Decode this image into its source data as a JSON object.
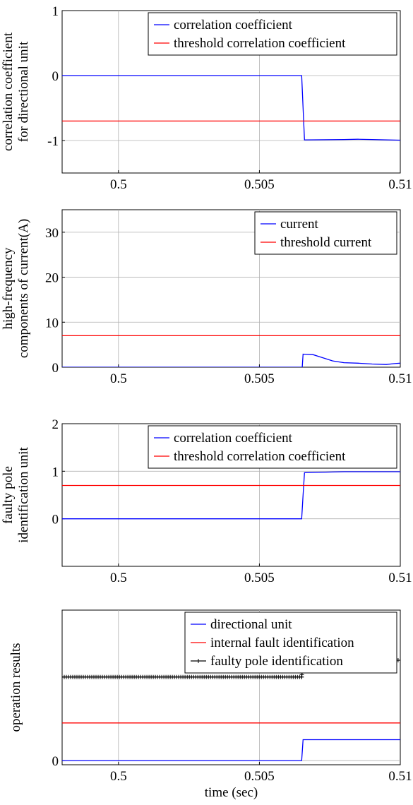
{
  "chart_data": [
    {
      "type": "line",
      "ylabel": [
        "correlation coefficient",
        "for directional unit"
      ],
      "xlim": [
        0.498,
        0.51
      ],
      "ylim": [
        -1.5,
        1
      ],
      "xticks": [
        0.5,
        0.505,
        0.51
      ],
      "xticklabels": [
        "0.5",
        "0.505",
        "0.51"
      ],
      "yticks": [
        -1,
        0,
        1
      ],
      "yticklabels": [
        "-1",
        "0",
        "1"
      ],
      "grid": true,
      "legend_position": "top-right",
      "series": [
        {
          "name": "correlation coefficient",
          "color": "#0000ff",
          "marker": "none",
          "x": [
            0.498,
            0.5065,
            0.50655,
            0.5066,
            0.508,
            0.5085,
            0.509,
            0.51
          ],
          "y": [
            0,
            0,
            -0.5,
            -0.99,
            -0.985,
            -0.98,
            -0.985,
            -0.995
          ]
        },
        {
          "name": "threshold correlation coefficient",
          "color": "#ff0000",
          "marker": "none",
          "x": [
            0.498,
            0.51
          ],
          "y": [
            -0.7,
            -0.7
          ]
        }
      ]
    },
    {
      "type": "line",
      "ylabel": [
        "high-frequency",
        "components of current(A)"
      ],
      "xlim": [
        0.498,
        0.51
      ],
      "ylim": [
        0,
        35
      ],
      "xticks": [
        0.5,
        0.505,
        0.51
      ],
      "xticklabels": [
        "0.5",
        "0.505",
        "0.51"
      ],
      "yticks": [
        0,
        10,
        20,
        30
      ],
      "yticklabels": [
        "0",
        "10",
        "20",
        "30"
      ],
      "grid": true,
      "legend_position": "top-right",
      "series": [
        {
          "name": "current",
          "color": "#0000ff",
          "marker": "none",
          "x": [
            0.498,
            0.50652,
            0.50655,
            0.5069,
            0.5072,
            0.5076,
            0.508,
            0.5085,
            0.509,
            0.5095,
            0.5098,
            0.51
          ],
          "y": [
            0,
            0,
            2.9,
            2.8,
            2.2,
            1.4,
            1.0,
            0.9,
            0.7,
            0.6,
            0.8,
            0.9
          ]
        },
        {
          "name": "threshold current",
          "color": "#ff0000",
          "marker": "none",
          "x": [
            0.498,
            0.51
          ],
          "y": [
            7,
            7
          ]
        }
      ]
    },
    {
      "type": "line",
      "ylabel": [
        "faulty pole",
        "identification unit"
      ],
      "xlim": [
        0.498,
        0.51
      ],
      "ylim": [
        -1,
        2
      ],
      "xticks": [
        0.5,
        0.505,
        0.51
      ],
      "xticklabels": [
        "0.5",
        "0.505",
        "0.51"
      ],
      "yticks": [
        0,
        1,
        2
      ],
      "yticklabels": [
        "0",
        "1",
        "2"
      ],
      "grid": true,
      "legend_position": "top-right",
      "series": [
        {
          "name": "correlation coefficient",
          "color": "#0000ff",
          "marker": "none",
          "x": [
            0.498,
            0.5065,
            0.50655,
            0.5066,
            0.508,
            0.51
          ],
          "y": [
            0,
            0,
            0.5,
            0.97,
            0.99,
            0.99
          ]
        },
        {
          "name": "threshold correlation coefficient",
          "color": "#ff0000",
          "marker": "none",
          "x": [
            0.498,
            0.51
          ],
          "y": [
            0.7,
            0.7
          ]
        }
      ]
    },
    {
      "type": "line",
      "ylabel": [
        "operation results"
      ],
      "xlabel": "time (sec)",
      "xlim": [
        0.498,
        0.51
      ],
      "ylim": [
        -0.1,
        3.6
      ],
      "xticks": [
        0.5,
        0.505,
        0.51
      ],
      "xticklabels": [
        "0.5",
        "0.505",
        "0.51"
      ],
      "yticks": [
        0
      ],
      "yticklabels": [
        "0"
      ],
      "grid": true,
      "legend_position": "top-right",
      "series": [
        {
          "name": "directional unit",
          "color": "#0000ff",
          "marker": "none",
          "x": [
            0.498,
            0.5065,
            0.50655,
            0.51
          ],
          "y": [
            0,
            0,
            0.5,
            0.5
          ]
        },
        {
          "name": "internal fault identification",
          "color": "#ff0000",
          "marker": "none",
          "x": [
            0.498,
            0.51
          ],
          "y": [
            0.9,
            0.9
          ]
        },
        {
          "name": "faulty pole identification",
          "color": "#000000",
          "marker": "plus",
          "x": [
            0.498,
            0.5065,
            0.50655,
            0.51
          ],
          "y": [
            2.0,
            2.0,
            2.4,
            2.4
          ]
        }
      ]
    }
  ]
}
